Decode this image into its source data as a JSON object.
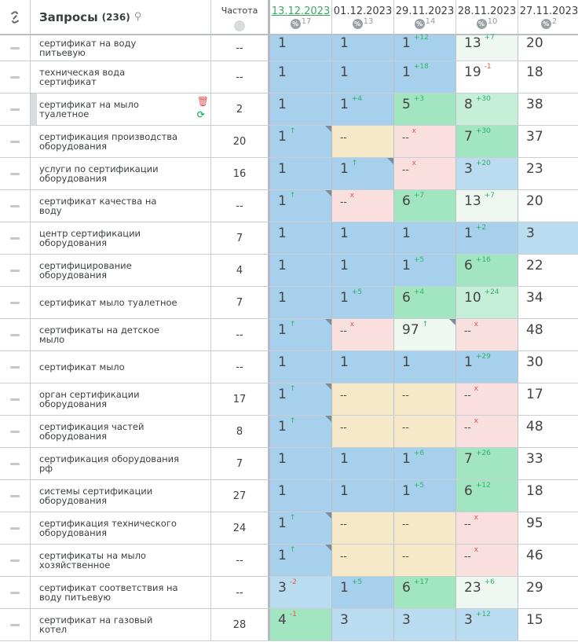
{
  "header": {
    "link_icon": "link-icon",
    "title": "Запросы",
    "count": "(236)",
    "search_icon": "search-icon",
    "freq_label": "Частота",
    "globe_icon": "globe-icon",
    "dates": [
      {
        "date": "13.12.2023",
        "pct": "%",
        "count": "17",
        "active": true
      },
      {
        "date": "01.12.2023",
        "pct": "%",
        "count": "13"
      },
      {
        "date": "29.11.2023",
        "pct": "%",
        "count": "14"
      },
      {
        "date": "28.11.2023",
        "pct": "%",
        "count": "10"
      },
      {
        "date": "27.11.2023",
        "pct": "%",
        "count": "2"
      }
    ]
  },
  "colors": {
    "blue": "#a7d0ec",
    "light_blue": "#b9dcf1",
    "green": "#a2e5c1",
    "light_green": "#c6efd8",
    "pale_green": "#eef8f1",
    "beige": "#f6e9c9",
    "pink": "#f9e0df",
    "up": "#2fb36a",
    "down": "#e0564f"
  },
  "rows": [
    {
      "q": "сертификат на воду питьевую",
      "f": "--",
      "c": [
        [
          "1",
          "",
          "",
          "bb"
        ],
        [
          "1",
          "",
          "",
          "bb"
        ],
        [
          "1",
          "+12",
          "g",
          "bb"
        ],
        [
          "13",
          "+7",
          "g",
          "vg"
        ],
        [
          "20",
          "",
          "",
          "w"
        ]
      ]
    },
    {
      "q": "техническая вода сертификат",
      "f": "--",
      "c": [
        [
          "1",
          "",
          "",
          "bb"
        ],
        [
          "1",
          "",
          "",
          "bb"
        ],
        [
          "1",
          "+18",
          "g",
          "bb"
        ],
        [
          "19",
          "-1",
          "r",
          "w"
        ],
        [
          "18",
          "",
          "",
          "w"
        ]
      ]
    },
    {
      "q": "сертификат на мыло туалетное",
      "f": "2",
      "selected": true,
      "c": [
        [
          "1",
          "",
          "",
          "bb"
        ],
        [
          "1",
          "+4",
          "g",
          "bb"
        ],
        [
          "5",
          "+3",
          "g",
          "gg"
        ],
        [
          "8",
          "+30",
          "g",
          "lg"
        ],
        [
          "38",
          "",
          "",
          "w"
        ]
      ]
    },
    {
      "q": "сертификация производства оборудования",
      "f": "20",
      "c": [
        [
          "1",
          "↑",
          "g",
          "bb",
          1
        ],
        [
          "--",
          "",
          "",
          "be"
        ],
        [
          "--",
          "x",
          "r",
          "pk"
        ],
        [
          "7",
          "+30",
          "g",
          "gg"
        ],
        [
          "37",
          "",
          "",
          "w"
        ]
      ]
    },
    {
      "q": "услуги по сертификации оборудования",
      "f": "16",
      "c": [
        [
          "1",
          "",
          "",
          "bb"
        ],
        [
          "1",
          "↑",
          "g",
          "bb",
          1
        ],
        [
          "--",
          "x",
          "r",
          "pk"
        ],
        [
          "3",
          "+20",
          "g",
          "lb"
        ],
        [
          "23",
          "",
          "",
          "w"
        ]
      ]
    },
    {
      "q": "сертификат качества на воду",
      "f": "--",
      "c": [
        [
          "1",
          "↑",
          "g",
          "bb",
          1
        ],
        [
          "--",
          "x",
          "r",
          "pk"
        ],
        [
          "6",
          "+7",
          "g",
          "gg"
        ],
        [
          "13",
          "+7",
          "g",
          "vg"
        ],
        [
          "20",
          "",
          "",
          "w"
        ]
      ]
    },
    {
      "q": "центр сертификации оборудования",
      "f": "7",
      "c": [
        [
          "1",
          "",
          "",
          "bb"
        ],
        [
          "1",
          "",
          "",
          "bb"
        ],
        [
          "1",
          "",
          "",
          "bb"
        ],
        [
          "1",
          "+2",
          "g",
          "bb"
        ],
        [
          "3",
          "",
          "",
          "lb"
        ]
      ]
    },
    {
      "q": "сертифицирование оборудования",
      "f": "4",
      "c": [
        [
          "1",
          "",
          "",
          "bb"
        ],
        [
          "1",
          "",
          "",
          "bb"
        ],
        [
          "1",
          "+5",
          "g",
          "bb"
        ],
        [
          "6",
          "+16",
          "g",
          "gg"
        ],
        [
          "22",
          "",
          "",
          "w"
        ]
      ]
    },
    {
      "q": "сертификат мыло туалетное",
      "f": "7",
      "c": [
        [
          "1",
          "",
          "",
          "bb"
        ],
        [
          "1",
          "+5",
          "g",
          "bb"
        ],
        [
          "6",
          "+4",
          "g",
          "gg"
        ],
        [
          "10",
          "+24",
          "g",
          "lg"
        ],
        [
          "34",
          "",
          "",
          "w"
        ]
      ]
    },
    {
      "q": "сертификаты на детское мыло",
      "f": "--",
      "c": [
        [
          "1",
          "↑",
          "g",
          "bb",
          1
        ],
        [
          "--",
          "x",
          "r",
          "pk"
        ],
        [
          "97",
          "↑",
          "g",
          "vg",
          1
        ],
        [
          "--",
          "x",
          "r",
          "pk"
        ],
        [
          "48",
          "",
          "",
          "w"
        ]
      ]
    },
    {
      "q": "сертификат мыло",
      "f": "--",
      "c": [
        [
          "1",
          "",
          "",
          "bb"
        ],
        [
          "1",
          "",
          "",
          "bb"
        ],
        [
          "1",
          "",
          "",
          "bb"
        ],
        [
          "1",
          "+29",
          "g",
          "bb"
        ],
        [
          "30",
          "",
          "",
          "w"
        ]
      ]
    },
    {
      "q": "орган сертификации оборудования",
      "f": "17",
      "c": [
        [
          "1",
          "↑",
          "g",
          "bb",
          1
        ],
        [
          "--",
          "",
          "",
          "be"
        ],
        [
          "--",
          "",
          "",
          "be"
        ],
        [
          "--",
          "x",
          "r",
          "pk"
        ],
        [
          "17",
          "",
          "",
          "w"
        ]
      ]
    },
    {
      "q": "сертификация частей оборудования",
      "f": "8",
      "c": [
        [
          "1",
          "↑",
          "g",
          "bb",
          1
        ],
        [
          "--",
          "",
          "",
          "be"
        ],
        [
          "--",
          "",
          "",
          "be"
        ],
        [
          "--",
          "x",
          "r",
          "pk"
        ],
        [
          "48",
          "",
          "",
          "w"
        ]
      ]
    },
    {
      "q": "сертификация оборудования рф",
      "f": "7",
      "c": [
        [
          "1",
          "",
          "",
          "bb"
        ],
        [
          "1",
          "",
          "",
          "bb"
        ],
        [
          "1",
          "+6",
          "g",
          "bb"
        ],
        [
          "7",
          "+26",
          "g",
          "gg"
        ],
        [
          "33",
          "",
          "",
          "w"
        ]
      ]
    },
    {
      "q": "системы сертификации оборудования",
      "f": "27",
      "c": [
        [
          "1",
          "",
          "",
          "bb"
        ],
        [
          "1",
          "",
          "",
          "bb"
        ],
        [
          "1",
          "+5",
          "g",
          "bb"
        ],
        [
          "6",
          "+12",
          "g",
          "gg"
        ],
        [
          "18",
          "",
          "",
          "w"
        ]
      ]
    },
    {
      "q": "сертификация технического оборудования",
      "f": "24",
      "c": [
        [
          "1",
          "↑",
          "g",
          "bb",
          1
        ],
        [
          "--",
          "",
          "",
          "be"
        ],
        [
          "--",
          "",
          "",
          "be"
        ],
        [
          "--",
          "x",
          "r",
          "pk"
        ],
        [
          "95",
          "",
          "",
          "w"
        ]
      ]
    },
    {
      "q": "сертификаты на мыло хозяйственное",
      "f": "--",
      "c": [
        [
          "1",
          "↑",
          "g",
          "bb",
          1
        ],
        [
          "--",
          "",
          "",
          "be"
        ],
        [
          "--",
          "",
          "",
          "be"
        ],
        [
          "--",
          "x",
          "r",
          "pk"
        ],
        [
          "46",
          "",
          "",
          "w"
        ]
      ]
    },
    {
      "q": "сертификат соответствия на воду питьевую",
      "f": "--",
      "c": [
        [
          "3",
          "-2",
          "r",
          "lb"
        ],
        [
          "1",
          "+5",
          "g",
          "bb"
        ],
        [
          "6",
          "+17",
          "g",
          "gg"
        ],
        [
          "23",
          "+6",
          "g",
          "vg"
        ],
        [
          "29",
          "",
          "",
          "w"
        ]
      ]
    },
    {
      "q": "сертификат на газовый котел",
      "f": "28",
      "c": [
        [
          "4",
          "-1",
          "r",
          "gg"
        ],
        [
          "3",
          "",
          "",
          "lb"
        ],
        [
          "3",
          "",
          "",
          "lb"
        ],
        [
          "3",
          "+12",
          "g",
          "lb"
        ],
        [
          "15",
          "",
          "",
          "w"
        ]
      ]
    }
  ]
}
